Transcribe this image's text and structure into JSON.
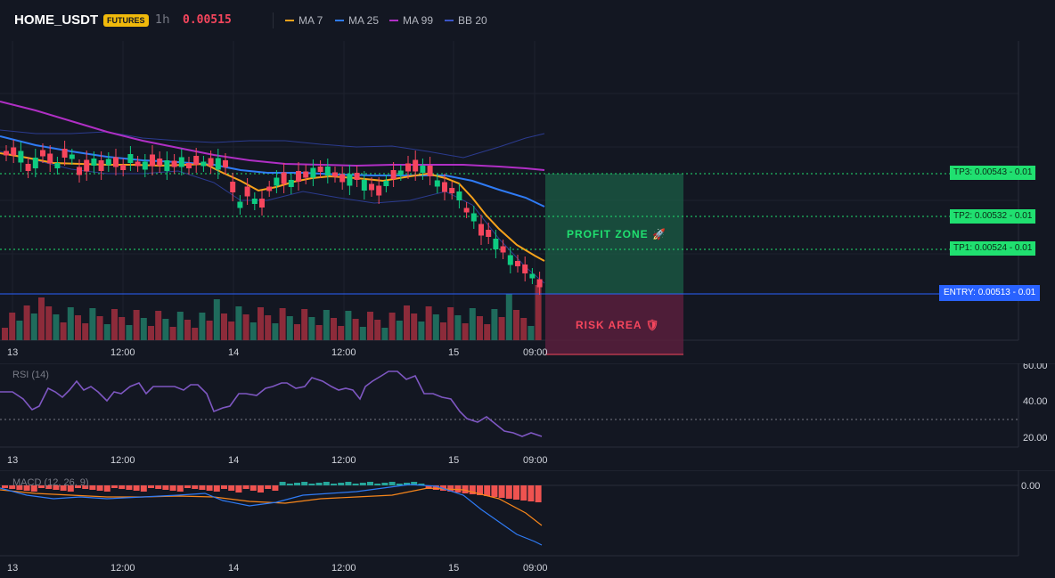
{
  "header": {
    "symbol": "HOME_USDT",
    "badge": "FUTURES",
    "interval": "1h",
    "last_price": "0.00515",
    "legend": [
      {
        "label": "MA 7",
        "color": "#f7a21b"
      },
      {
        "label": "MA 25",
        "color": "#2f7bf5"
      },
      {
        "label": "MA 99",
        "color": "#b02fc5"
      },
      {
        "label": "BB 20",
        "color": "#3b55c7"
      }
    ]
  },
  "levels": {
    "tp3": "TP3: 0.00543 - 0.01",
    "tp2": "TP2: 0.00532 - 0.01",
    "tp1": "TP1: 0.00524 - 0.01",
    "entry": "ENTRY: 0.00513 - 0.01"
  },
  "zones": {
    "profit": "PROFIT ZONE 🚀",
    "risk": "RISK AREA 🛡"
  },
  "time_axis": [
    "13",
    "12:00",
    "14",
    "12:00",
    "15",
    "09:00"
  ],
  "rsi": {
    "label": "RSI (14)",
    "ticks": [
      "60.00",
      "40.00",
      "20.00"
    ]
  },
  "macd": {
    "label": "MACD (12, 26, 9)",
    "tick": "0.00"
  },
  "colors": {
    "up": "#0ecb81",
    "down": "#f6465d",
    "vol_up": "#1f6b5c",
    "vol_down": "#8c2b3a",
    "rsi": "#7e57c2",
    "macd_line": "#2f7bf5",
    "signal_line": "#f7861b"
  }
}
